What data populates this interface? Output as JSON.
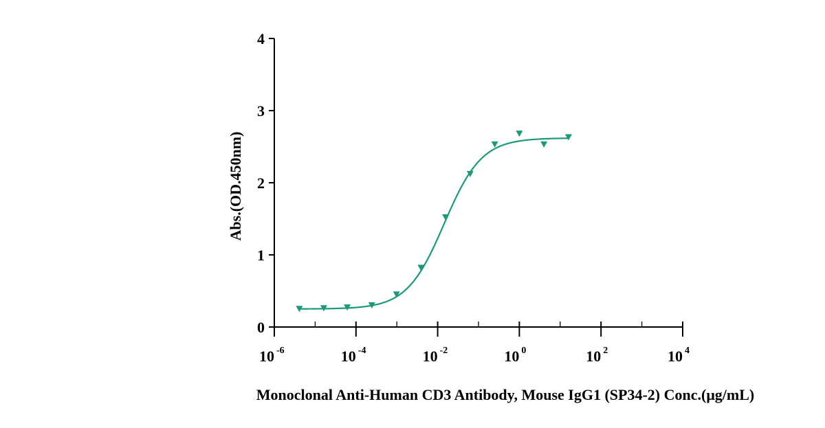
{
  "chart_data": {
    "type": "scatter",
    "xlabel": "Monoclonal Anti-Human CD3 Antibody, Mouse IgG1 (SP34-2) Conc.(μg/mL)",
    "ylabel": "Abs.(OD.450nm)",
    "x_scale": "log",
    "xlim": [
      1e-06,
      10000
    ],
    "ylim": [
      0,
      4
    ],
    "x_tick_labels": [
      {
        "base": "10",
        "exp": "-6"
      },
      {
        "base": "10",
        "exp": "-4"
      },
      {
        "base": "10",
        "exp": "-2"
      },
      {
        "base": "10",
        "exp": "0"
      },
      {
        "base": "10",
        "exp": "2"
      },
      {
        "base": "10",
        "exp": "4"
      }
    ],
    "y_ticks": [
      "0",
      "1",
      "2",
      "3",
      "4"
    ],
    "grid": false,
    "color": "#1a9a78",
    "marker": "inverted-triangle",
    "series": [
      {
        "x": [
          4.1e-06,
          1.63e-05,
          6.1e-05,
          0.000244,
          0.00098,
          0.0039,
          0.0156,
          0.0625,
          0.25,
          1.0,
          4.0,
          16.0
        ],
        "y": [
          0.25,
          0.26,
          0.27,
          0.3,
          0.45,
          0.82,
          1.52,
          2.12,
          2.53,
          2.68,
          2.53,
          2.63
        ]
      }
    ],
    "fit": {
      "type": "4PL",
      "bottom": 0.25,
      "top": 2.62,
      "ec50": 0.0145,
      "hill": 0.95
    }
  }
}
